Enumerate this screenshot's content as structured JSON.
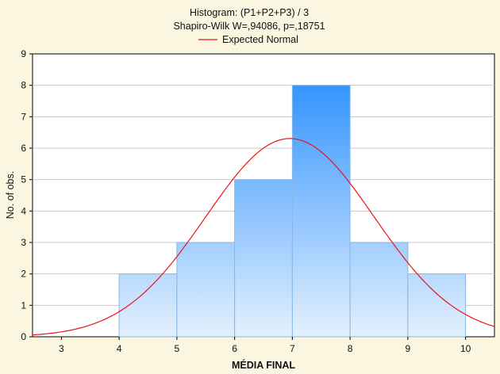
{
  "chart_data": {
    "type": "bar",
    "title": "Histogram: (P1+P2+P3) / 3",
    "subtitle": "Shapiro-Wilk W=,94086, p=,18751",
    "legend": [
      {
        "label": "Expected Normal",
        "color": "#e8141a"
      }
    ],
    "legend_position": "top-center",
    "xlabel": "MÉDIA FINAL",
    "ylabel": "No. of obs.",
    "xlim": [
      2.5,
      10.5
    ],
    "ylim": [
      0,
      9
    ],
    "x_ticks": [
      3,
      4,
      5,
      6,
      7,
      8,
      9,
      10
    ],
    "y_ticks": [
      0,
      1,
      2,
      3,
      4,
      5,
      6,
      7,
      8,
      9
    ],
    "grid": true,
    "bins": [
      {
        "from": 4,
        "to": 5,
        "value": 2
      },
      {
        "from": 5,
        "to": 6,
        "value": 3
      },
      {
        "from": 6,
        "to": 7,
        "value": 5
      },
      {
        "from": 7,
        "to": 8,
        "value": 8
      },
      {
        "from": 8,
        "to": 9,
        "value": 3
      },
      {
        "from": 9,
        "to": 10,
        "value": 2
      }
    ],
    "normal_curve": {
      "mean": 6.958,
      "sd": 1.455,
      "n": 23,
      "bin_width": 1,
      "color": "#e8141a"
    },
    "colors": {
      "background": "#fbf6e0",
      "plot_background": "#ffffff",
      "bar_top": "#1e8aff",
      "bar_bottom": "#e4f0fd",
      "bar_stroke": "#86b6e6",
      "grid": "#c8c8c8"
    }
  }
}
